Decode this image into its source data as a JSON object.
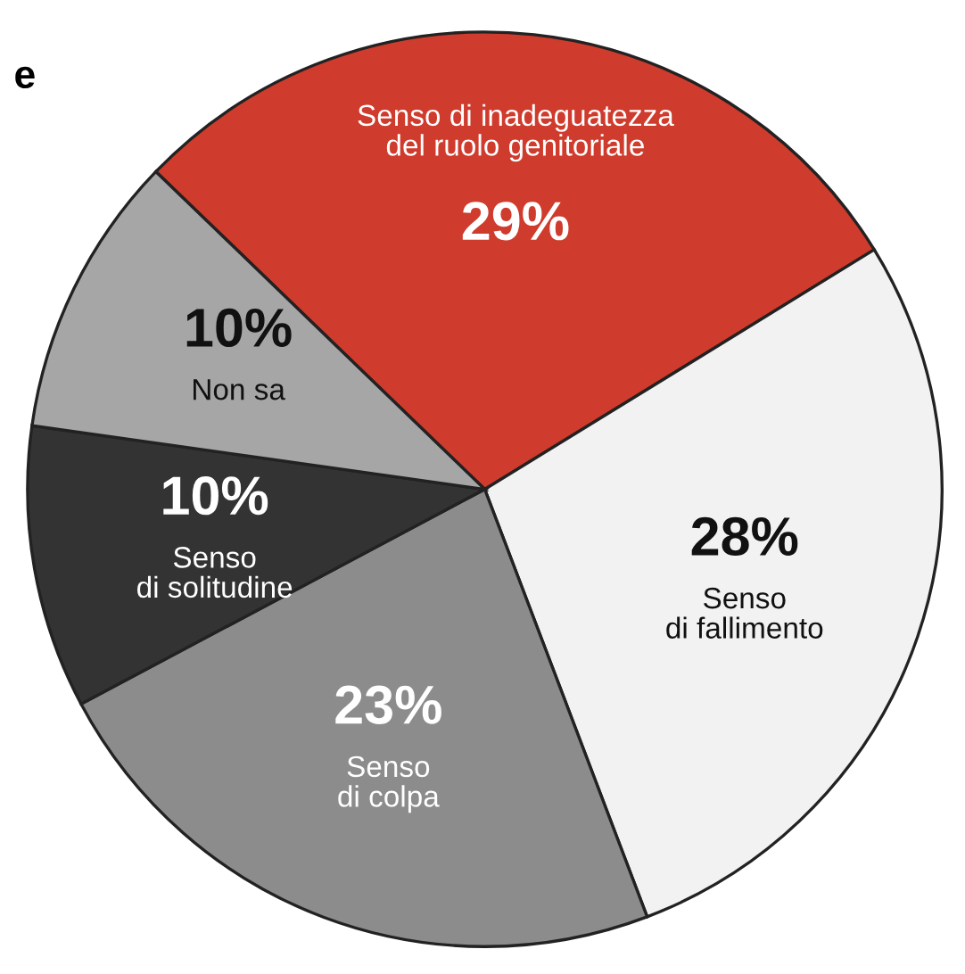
{
  "chart_data": {
    "type": "pie",
    "categories": [
      "Senso di inadeguatezza\ndel ruolo genitoriale",
      "Senso\ndi fallimento",
      "Senso\ndi colpa",
      "Senso\ndi solitudine",
      "Non sa"
    ],
    "values": [
      29,
      28,
      23,
      10,
      10
    ],
    "value_labels": [
      "29%",
      "28%",
      "23%",
      "10%",
      "10%"
    ],
    "colors": [
      "#cf3b2c",
      "#f2f2f2",
      "#8c8c8c",
      "#333333",
      "#a6a6a6"
    ],
    "annotations": [
      "e"
    ]
  }
}
